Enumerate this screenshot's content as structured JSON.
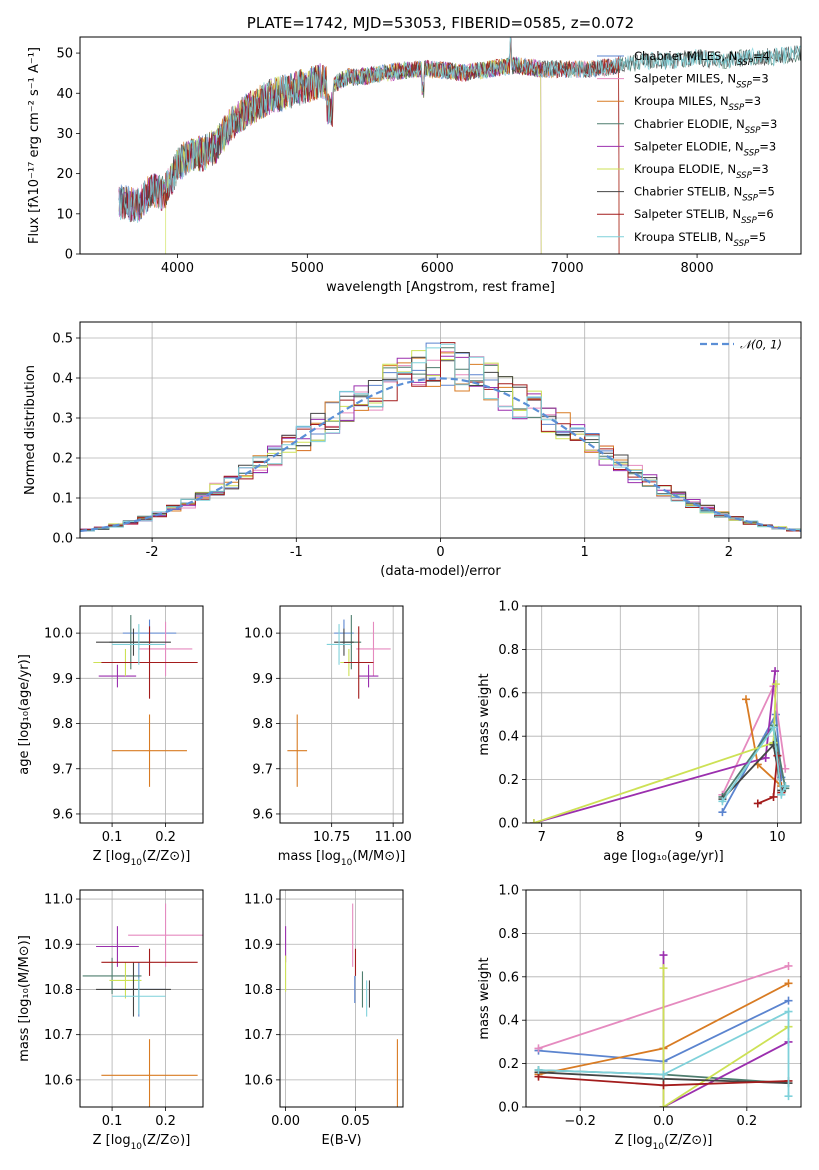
{
  "colors": {
    "Chabrier MILES": "#5b84cf",
    "Salpeter MILES": "#e58abf",
    "Kroupa MILES": "#d87b23",
    "Chabrier ELODIE": "#4e7d6e",
    "Salpeter ELODIE": "#9b2fae",
    "Kroupa ELODIE": "#cde155",
    "Chabrier STELIB": "#444444",
    "Salpeter STELIB": "#a31c1c",
    "Kroupa STELIB": "#7fd1da",
    "gaussian": "#5b8fd6",
    "grid": "#b0b0b0"
  },
  "chart_data": [
    {
      "id": "spectrum",
      "type": "line",
      "title": "PLATE=1742, MJD=53053, FIBERID=0585, z=0.072",
      "xlabel": "wavelength [Angstrom, rest frame]",
      "ylabel": "Flux [fλ10⁻¹⁷ erg cm⁻² s⁻¹ A⁻¹]",
      "xlim": [
        3250,
        8800
      ],
      "ylim": [
        0,
        54
      ],
      "xticks": [
        4000,
        5000,
        6000,
        7000,
        8000
      ],
      "yticks": [
        0,
        10,
        20,
        30,
        40,
        50
      ],
      "grid": false,
      "legend_position": "top-right",
      "legend": [
        {
          "name": "Chabrier MILES",
          "prefix": "Chabrier MILES, N",
          "sub": "SSP",
          "suffix": "=4"
        },
        {
          "name": "Salpeter MILES",
          "prefix": "Salpeter MILES, N",
          "sub": "SSP",
          "suffix": "=3"
        },
        {
          "name": "Kroupa MILES",
          "prefix": "Kroupa MILES, N",
          "sub": "SSP",
          "suffix": "=3"
        },
        {
          "name": "Chabrier ELODIE",
          "prefix": "Chabrier ELODIE, N",
          "sub": "SSP",
          "suffix": "=3"
        },
        {
          "name": "Salpeter ELODIE",
          "prefix": "Salpeter ELODIE, N",
          "sub": "SSP",
          "suffix": "=3"
        },
        {
          "name": "Kroupa ELODIE",
          "prefix": "Kroupa ELODIE, N",
          "sub": "SSP",
          "suffix": "=3"
        },
        {
          "name": "Chabrier STELIB",
          "prefix": "Chabrier STELIB, N",
          "sub": "SSP",
          "suffix": "=5"
        },
        {
          "name": "Salpeter STELIB",
          "prefix": "Salpeter STELIB, N",
          "sub": "SSP",
          "suffix": "=6"
        },
        {
          "name": "Kroupa STELIB",
          "prefix": "Kroupa STELIB, N",
          "sub": "SSP",
          "suffix": "=5"
        }
      ],
      "continuum": {
        "x": [
          3550,
          3700,
          3800,
          3900,
          4000,
          4100,
          4200,
          4300,
          4400,
          4500,
          4600,
          4700,
          4800,
          4900,
          5000,
          5100,
          5200,
          5300,
          5400,
          5600,
          5800,
          6000,
          6200,
          6400,
          6600,
          6800,
          7000,
          7200,
          7400,
          7600,
          7800,
          8000,
          8200,
          8400,
          8600,
          8800
        ],
        "y": [
          13,
          12,
          16,
          15,
          22,
          25,
          25,
          27,
          32,
          35,
          37,
          39,
          40,
          41,
          42,
          43,
          42,
          44,
          44,
          45,
          46,
          46,
          45,
          46,
          47,
          46,
          46,
          46,
          47,
          48,
          48,
          49,
          48,
          49,
          49,
          50
        ]
      },
      "spectrum_range": {
        "Chabrier MILES": [
          3550,
          7400
        ],
        "Salpeter MILES": [
          3550,
          7400
        ],
        "Kroupa MILES": [
          3550,
          7400
        ],
        "Chabrier ELODIE": [
          3550,
          8800
        ],
        "Salpeter ELODIE": [
          3550,
          6800
        ],
        "Kroupa ELODIE": [
          3910,
          6800
        ],
        "Chabrier STELIB": [
          3550,
          8800
        ],
        "Salpeter STELIB": [
          3550,
          7400
        ],
        "Kroupa STELIB": [
          3550,
          8800
        ]
      }
    },
    {
      "id": "residual_hist",
      "type": "histogram",
      "xlabel": "(data-model)/error",
      "ylabel": "Normed distribution",
      "xlim": [
        -2.5,
        2.5
      ],
      "ylim": [
        0,
        0.54
      ],
      "xticks": [
        -2,
        -1,
        0,
        1,
        2
      ],
      "yticks": [
        0.0,
        0.1,
        0.2,
        0.3,
        0.4,
        0.5
      ],
      "grid": true,
      "legend_position": "top-right",
      "legend_label": "𝒩(0, 1)",
      "bin_width": 0.1,
      "bin_start": -2.5,
      "bins": 50,
      "gaussian": {
        "mean": 0,
        "sigma": 1,
        "style": "dashed"
      }
    },
    {
      "id": "age_vs_Z",
      "type": "errorbar",
      "xlabel_prefix": "Z [log",
      "xlabel_sub": "10",
      "xlabel_suffix": "(Z/Z⊙)]",
      "ylabel": "age  [log₁₀(age/yr)]",
      "xlim": [
        0.04,
        0.27
      ],
      "ylim": [
        9.58,
        10.06
      ],
      "xticks": [
        0.1,
        0.2
      ],
      "yticks": [
        9.6,
        9.7,
        9.8,
        9.9,
        10.0
      ],
      "grid": true,
      "points": [
        {
          "model": "Chabrier MILES",
          "x": 0.17,
          "y": 10.0,
          "xerr": 0.05,
          "yerr": 0.03
        },
        {
          "model": "Salpeter MILES",
          "x": 0.2,
          "y": 9.965,
          "xerr": 0.05,
          "yerr": 0.06
        },
        {
          "model": "Kroupa MILES",
          "x": 0.17,
          "y": 9.74,
          "xerr": 0.07,
          "yerr": 0.08
        },
        {
          "model": "Chabrier ELODIE",
          "x": 0.135,
          "y": 9.98,
          "xerr": 0.04,
          "yerr": 0.06
        },
        {
          "model": "Salpeter ELODIE",
          "x": 0.11,
          "y": 9.905,
          "xerr": 0.035,
          "yerr": 0.025
        },
        {
          "model": "Kroupa ELODIE",
          "x": 0.125,
          "y": 9.935,
          "xerr": 0.06,
          "yerr": 0.03
        },
        {
          "model": "Chabrier STELIB",
          "x": 0.14,
          "y": 9.98,
          "xerr": 0.07,
          "yerr": 0.03
        },
        {
          "model": "Salpeter STELIB",
          "x": 0.17,
          "y": 9.935,
          "xerr": 0.09,
          "yerr": 0.08
        },
        {
          "model": "Kroupa STELIB",
          "x": 0.15,
          "y": 9.975,
          "xerr": 0.05,
          "yerr": 0.045
        }
      ]
    },
    {
      "id": "age_vs_mass",
      "type": "errorbar",
      "xlabel_prefix": "mass [log",
      "xlabel_sub": "10",
      "xlabel_suffix": "(M/M⊙)]",
      "xlim": [
        10.54,
        11.04
      ],
      "ylim": [
        9.58,
        10.06
      ],
      "xticks": [
        10.75,
        11.0
      ],
      "xtick_labels": [
        "10.75",
        "11.00"
      ],
      "yticks": [
        9.6,
        9.7,
        9.8,
        9.9,
        10.0
      ],
      "grid": true,
      "points": [
        {
          "model": "Chabrier MILES",
          "x": 10.8,
          "y": 10.0,
          "xerr": 0.04,
          "yerr": 0.03
        },
        {
          "model": "Salpeter MILES",
          "x": 10.92,
          "y": 9.965,
          "xerr": 0.07,
          "yerr": 0.06
        },
        {
          "model": "Kroupa MILES",
          "x": 10.61,
          "y": 9.74,
          "xerr": 0.04,
          "yerr": 0.08
        },
        {
          "model": "Chabrier ELODIE",
          "x": 10.83,
          "y": 9.98,
          "xerr": 0.04,
          "yerr": 0.06
        },
        {
          "model": "Salpeter ELODIE",
          "x": 10.9,
          "y": 9.905,
          "xerr": 0.04,
          "yerr": 0.025
        },
        {
          "model": "Kroupa ELODIE",
          "x": 10.82,
          "y": 9.935,
          "xerr": 0.035,
          "yerr": 0.03
        },
        {
          "model": "Chabrier STELIB",
          "x": 10.8,
          "y": 9.98,
          "xerr": 0.04,
          "yerr": 0.03
        },
        {
          "model": "Salpeter STELIB",
          "x": 10.86,
          "y": 9.935,
          "xerr": 0.06,
          "yerr": 0.08
        },
        {
          "model": "Kroupa STELIB",
          "x": 10.78,
          "y": 9.975,
          "xerr": 0.05,
          "yerr": 0.045
        }
      ]
    },
    {
      "id": "massweight_vs_age",
      "type": "line",
      "xlabel": "age  [log₁₀(age/yr)]",
      "ylabel": "mass weight",
      "xlim": [
        6.8,
        10.3
      ],
      "ylim": [
        0,
        1
      ],
      "xticks": [
        7,
        8,
        9,
        10
      ],
      "yticks": [
        0.0,
        0.2,
        0.4,
        0.6,
        0.8,
        1.0
      ],
      "grid": true,
      "series": [
        {
          "model": "Chabrier MILES",
          "x": [
            9.3,
            9.98,
            10.05
          ],
          "y": [
            0.05,
            0.5,
            0.21
          ]
        },
        {
          "model": "Salpeter MILES",
          "x": [
            9.3,
            9.95,
            10.1
          ],
          "y": [
            0.13,
            0.63,
            0.25
          ]
        },
        {
          "model": "Kroupa MILES",
          "x": [
            9.6,
            9.75,
            10.05
          ],
          "y": [
            0.57,
            0.27,
            0.17
          ]
        },
        {
          "model": "Chabrier ELODIE",
          "x": [
            9.3,
            9.95,
            10.1
          ],
          "y": [
            0.12,
            0.45,
            0.16
          ]
        },
        {
          "model": "Salpeter ELODIE",
          "x": [
            6.9,
            9.85,
            9.97
          ],
          "y": [
            0.0,
            0.3,
            0.7
          ]
        },
        {
          "model": "Kroupa ELODIE",
          "x": [
            6.9,
            9.95,
            9.98
          ],
          "y": [
            0.0,
            0.37,
            0.64
          ]
        },
        {
          "model": "Chabrier STELIB",
          "x": [
            9.3,
            9.95,
            10.05,
            10.1
          ],
          "y": [
            0.11,
            0.36,
            0.15,
            0.17
          ]
        },
        {
          "model": "Salpeter STELIB",
          "x": [
            9.75,
            9.95,
            10.0,
            10.05
          ],
          "y": [
            0.09,
            0.12,
            0.31,
            0.14
          ]
        },
        {
          "model": "Kroupa STELIB",
          "x": [
            9.3,
            9.95,
            10.05,
            10.1
          ],
          "y": [
            0.1,
            0.44,
            0.13,
            0.17
          ]
        }
      ]
    },
    {
      "id": "mass_vs_Z",
      "type": "errorbar",
      "xlabel_prefix": "Z [log",
      "xlabel_sub": "10",
      "xlabel_suffix": "(Z/Z⊙)]",
      "ylabel": "mass [log₁₀(M/M⊙)]",
      "xlim": [
        0.04,
        0.27
      ],
      "ylim": [
        10.54,
        11.02
      ],
      "xticks": [
        0.1,
        0.2
      ],
      "yticks": [
        10.6,
        10.7,
        10.8,
        10.9,
        11.0
      ],
      "grid": true,
      "points": [
        {
          "model": "Chabrier MILES",
          "x": 0.15,
          "y": 10.8,
          "xerr": 0.05,
          "yerr": 0.06
        },
        {
          "model": "Salpeter MILES",
          "x": 0.2,
          "y": 10.92,
          "xerr": 0.07,
          "yerr": 0.07
        },
        {
          "model": "Kroupa MILES",
          "x": 0.17,
          "y": 10.61,
          "xerr": 0.09,
          "yerr": 0.08
        },
        {
          "model": "Chabrier ELODIE",
          "x": 0.1,
          "y": 10.83,
          "xerr": 0.055,
          "yerr": 0.04
        },
        {
          "model": "Salpeter ELODIE",
          "x": 0.11,
          "y": 10.895,
          "xerr": 0.04,
          "yerr": 0.045
        },
        {
          "model": "Kroupa ELODIE",
          "x": 0.125,
          "y": 10.82,
          "xerr": 0.03,
          "yerr": 0.04
        },
        {
          "model": "Chabrier STELIB",
          "x": 0.14,
          "y": 10.8,
          "xerr": 0.07,
          "yerr": 0.06
        },
        {
          "model": "Salpeter STELIB",
          "x": 0.17,
          "y": 10.86,
          "xerr": 0.09,
          "yerr": 0.03
        },
        {
          "model": "Kroupa STELIB",
          "x": 0.15,
          "y": 10.785,
          "xerr": 0.05,
          "yerr": 0.04
        }
      ]
    },
    {
      "id": "mass_vs_EBV",
      "type": "errorbar",
      "xlabel": "E(B-V)",
      "xlim": [
        -0.004,
        0.084
      ],
      "ylim": [
        10.54,
        11.02
      ],
      "xticks": [
        0.0,
        0.05
      ],
      "xtick_labels": [
        "0.00",
        "0.05"
      ],
      "yticks": [
        10.6,
        10.7,
        10.8,
        10.9,
        11.0
      ],
      "grid": true,
      "points": [
        {
          "model": "Chabrier MILES",
          "x": 0.0495,
          "y": 10.8,
          "xerr": 0,
          "yerr": 0.03
        },
        {
          "model": "Salpeter MILES",
          "x": 0.048,
          "y": 10.92,
          "xerr": 0,
          "yerr": 0.07
        },
        {
          "model": "Kroupa MILES",
          "x": 0.08,
          "y": 10.61,
          "xerr": 0,
          "yerr": 0.08
        },
        {
          "model": "Chabrier ELODIE",
          "x": 0.055,
          "y": 10.8,
          "xerr": 0,
          "yerr": 0.04
        },
        {
          "model": "Salpeter ELODIE",
          "x": 0.0,
          "y": 10.9,
          "xerr": 0,
          "yerr": 0.04
        },
        {
          "model": "Kroupa ELODIE",
          "x": 0.0,
          "y": 10.835,
          "xerr": 0,
          "yerr": 0.04
        },
        {
          "model": "Chabrier STELIB",
          "x": 0.06,
          "y": 10.79,
          "xerr": 0,
          "yerr": 0.03
        },
        {
          "model": "Salpeter STELIB",
          "x": 0.05,
          "y": 10.86,
          "xerr": 0,
          "yerr": 0.03
        },
        {
          "model": "Kroupa STELIB",
          "x": 0.058,
          "y": 10.78,
          "xerr": 0,
          "yerr": 0.04
        }
      ]
    },
    {
      "id": "massweight_vs_Z",
      "type": "line",
      "xlabel_prefix": "Z [log",
      "xlabel_sub": "10",
      "xlabel_suffix": "(Z/Z⊙)]",
      "ylabel": "mass weight",
      "xlim": [
        -0.33,
        0.33
      ],
      "ylim": [
        0,
        1
      ],
      "xticks": [
        -0.2,
        0.0,
        0.2
      ],
      "xtick_labels": [
        "−0.2",
        "0.0",
        "0.2"
      ],
      "yticks": [
        0.0,
        0.2,
        0.4,
        0.6,
        0.8,
        1.0
      ],
      "grid": true,
      "series": [
        {
          "model": "Chabrier MILES",
          "x": [
            -0.3,
            0.0,
            0.3
          ],
          "y": [
            0.26,
            0.21,
            0.49
          ]
        },
        {
          "model": "Salpeter MILES",
          "x": [
            -0.3,
            0.3
          ],
          "y": [
            0.27,
            0.65
          ]
        },
        {
          "model": "Kroupa MILES",
          "x": [
            -0.3,
            0.0,
            0.3
          ],
          "y": [
            0.15,
            0.27,
            0.57
          ]
        },
        {
          "model": "Chabrier ELODIE",
          "x": [
            -0.3,
            0.0,
            0.3
          ],
          "y": [
            0.17,
            0.15,
            0.11
          ]
        },
        {
          "model": "Salpeter ELODIE",
          "x": [
            0.0,
            0.0,
            0.3
          ],
          "y": [
            0.7,
            0.0,
            0.3
          ]
        },
        {
          "model": "Kroupa ELODIE",
          "x": [
            0.0,
            0.0,
            0.3
          ],
          "y": [
            0.64,
            0.0,
            0.37
          ]
        },
        {
          "model": "Chabrier STELIB",
          "x": [
            -0.3,
            0.0,
            0.3
          ],
          "y": [
            0.16,
            0.13,
            0.11
          ]
        },
        {
          "model": "Salpeter STELIB",
          "x": [
            -0.3,
            0.0,
            0.3
          ],
          "y": [
            0.14,
            0.1,
            0.12
          ]
        },
        {
          "model": "Kroupa STELIB",
          "x": [
            -0.3,
            0.0,
            0.3,
            0.3
          ],
          "y": [
            0.17,
            0.15,
            0.44,
            0.05
          ]
        }
      ]
    }
  ]
}
